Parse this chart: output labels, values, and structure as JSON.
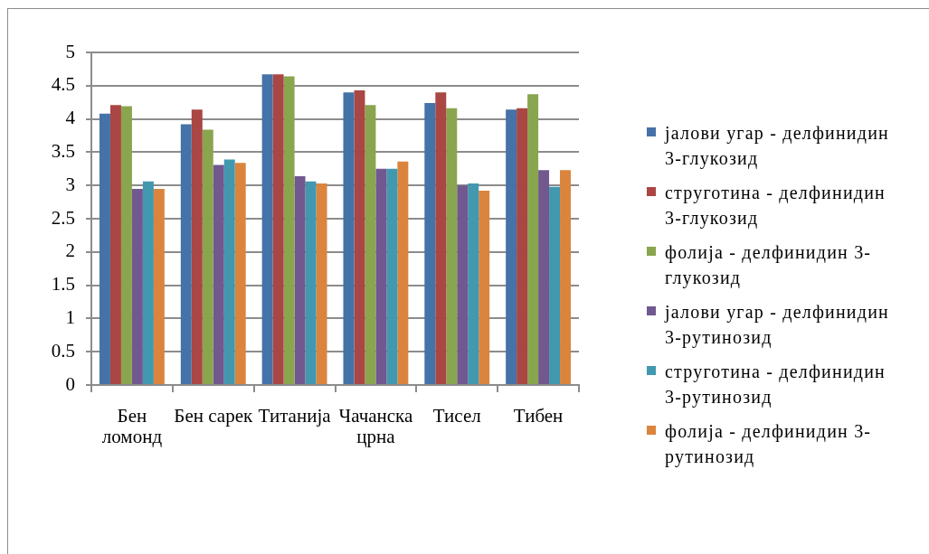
{
  "chart_data": {
    "type": "bar",
    "categories": [
      "Бен ломонд",
      "Бен сарек",
      "Титанија",
      "Чачанска црна",
      "Тисел",
      "Тибен"
    ],
    "series": [
      {
        "name": "јалови угар - делфинидин 3-глукозид",
        "color": "#4572a7",
        "values": [
          4.08,
          3.92,
          4.67,
          4.4,
          4.24,
          4.14
        ]
      },
      {
        "name": "струготина - делфинидин 3-глукозид",
        "color": "#aa4643",
        "values": [
          4.21,
          4.14,
          4.67,
          4.43,
          4.4,
          4.16
        ]
      },
      {
        "name": "фолија - делфинидин 3-глукозид",
        "color": "#89a54e",
        "values": [
          4.19,
          3.84,
          4.64,
          4.21,
          4.16,
          4.37
        ]
      },
      {
        "name": "јалови угар - делфинидин 3-рутинозид",
        "color": "#71588f",
        "values": [
          2.95,
          3.31,
          3.14,
          3.25,
          3.0,
          3.23
        ]
      },
      {
        "name": "струготина - делфинидин 3-рутинозид",
        "color": "#4198af",
        "values": [
          3.06,
          3.39,
          3.06,
          3.25,
          3.03,
          2.98
        ]
      },
      {
        "name": "фолија - делфинидин 3-рутинозид",
        "color": "#db843d",
        "values": [
          2.95,
          3.34,
          3.03,
          3.36,
          2.92,
          3.23
        ]
      }
    ],
    "ylim": [
      0,
      5
    ],
    "yticks": [
      0,
      0.5,
      1,
      1.5,
      2,
      2.5,
      3,
      3.5,
      4,
      4.5,
      5
    ],
    "grid": "y",
    "legend": "right"
  }
}
